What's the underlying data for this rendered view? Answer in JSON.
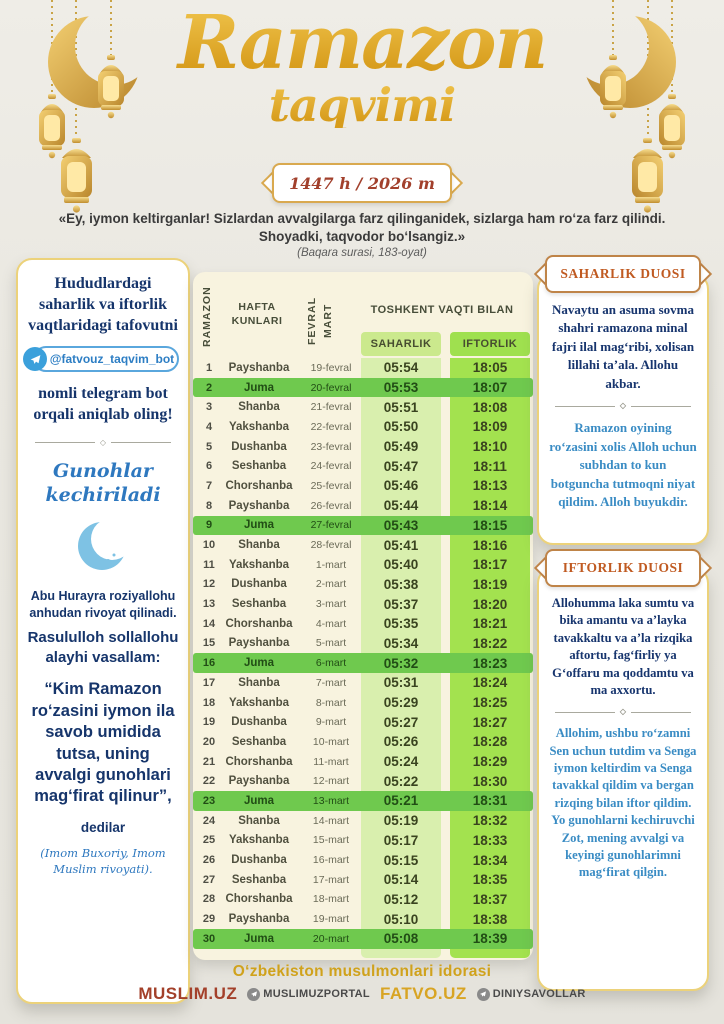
{
  "title": {
    "main": "Ramazon",
    "sub": "taqvimi"
  },
  "year_badge": "1447 h / 2026 m",
  "quote": {
    "text": "«Ey, iymon keltirganlar! Sizlardan avvalgilarga farz qilinganidek, sizlarga ham ro‘za farz qilindi. Shoyadki, taqvodor bo‘lsangiz.»",
    "source": "(Baqara surasi, 183-oyat)"
  },
  "left_panel": {
    "intro": "Hududlardagi saharlik va iftorlik vaqtlaridagi tafovutni",
    "bot_handle": "@fatvouz_taqvim_bot",
    "outro": "nomli telegram bot orqali aniqlab oling!",
    "heading": "Gunohlar kechiriladi",
    "narration1": "Abu Hurayra roziyallohu anhudan rivoyat qilinadi.",
    "narration2": "Rasululloh sollallohu alayhi vasallam:",
    "hadith": "“Kim Ramazon ro‘zasini iymon ila savob umidida tutsa, uning avvalgi gunohlari mag‘firat qilinur”,",
    "dedilar": "dedilar",
    "attribution": "(Imom Buxoriy, Imom Muslim rivoyati)."
  },
  "table": {
    "col_number": "RAMAZON",
    "col_day": "HAFTA KUNLARI",
    "col_date": "FEVRAL\nMART",
    "col_time_group": "TOSHKENT VAQTI BILAN",
    "col_saharlik": "SAHARLIK",
    "col_iftorlik": "IFTORLIK",
    "rows": [
      {
        "n": "1",
        "day": "Payshanba",
        "date": "19-fevral",
        "saharlik": "05:54",
        "iftorlik": "18:05",
        "juma": false
      },
      {
        "n": "2",
        "day": "Juma",
        "date": "20-fevral",
        "saharlik": "05:53",
        "iftorlik": "18:07",
        "juma": true
      },
      {
        "n": "3",
        "day": "Shanba",
        "date": "21-fevral",
        "saharlik": "05:51",
        "iftorlik": "18:08",
        "juma": false
      },
      {
        "n": "4",
        "day": "Yakshanba",
        "date": "22-fevral",
        "saharlik": "05:50",
        "iftorlik": "18:09",
        "juma": false
      },
      {
        "n": "5",
        "day": "Dushanba",
        "date": "23-fevral",
        "saharlik": "05:49",
        "iftorlik": "18:10",
        "juma": false
      },
      {
        "n": "6",
        "day": "Seshanba",
        "date": "24-fevral",
        "saharlik": "05:47",
        "iftorlik": "18:11",
        "juma": false
      },
      {
        "n": "7",
        "day": "Chorshanba",
        "date": "25-fevral",
        "saharlik": "05:46",
        "iftorlik": "18:13",
        "juma": false
      },
      {
        "n": "8",
        "day": "Payshanba",
        "date": "26-fevral",
        "saharlik": "05:44",
        "iftorlik": "18:14",
        "juma": false
      },
      {
        "n": "9",
        "day": "Juma",
        "date": "27-fevral",
        "saharlik": "05:43",
        "iftorlik": "18:15",
        "juma": true
      },
      {
        "n": "10",
        "day": "Shanba",
        "date": "28-fevral",
        "saharlik": "05:41",
        "iftorlik": "18:16",
        "juma": false
      },
      {
        "n": "11",
        "day": "Yakshanba",
        "date": "1-mart",
        "saharlik": "05:40",
        "iftorlik": "18:17",
        "juma": false
      },
      {
        "n": "12",
        "day": "Dushanba",
        "date": "2-mart",
        "saharlik": "05:38",
        "iftorlik": "18:19",
        "juma": false
      },
      {
        "n": "13",
        "day": "Seshanba",
        "date": "3-mart",
        "saharlik": "05:37",
        "iftorlik": "18:20",
        "juma": false
      },
      {
        "n": "14",
        "day": "Chorshanba",
        "date": "4-mart",
        "saharlik": "05:35",
        "iftorlik": "18:21",
        "juma": false
      },
      {
        "n": "15",
        "day": "Payshanba",
        "date": "5-mart",
        "saharlik": "05:34",
        "iftorlik": "18:22",
        "juma": false
      },
      {
        "n": "16",
        "day": "Juma",
        "date": "6-mart",
        "saharlik": "05:32",
        "iftorlik": "18:23",
        "juma": true
      },
      {
        "n": "17",
        "day": "Shanba",
        "date": "7-mart",
        "saharlik": "05:31",
        "iftorlik": "18:24",
        "juma": false
      },
      {
        "n": "18",
        "day": "Yakshanba",
        "date": "8-mart",
        "saharlik": "05:29",
        "iftorlik": "18:25",
        "juma": false
      },
      {
        "n": "19",
        "day": "Dushanba",
        "date": "9-mart",
        "saharlik": "05:27",
        "iftorlik": "18:27",
        "juma": false
      },
      {
        "n": "20",
        "day": "Seshanba",
        "date": "10-mart",
        "saharlik": "05:26",
        "iftorlik": "18:28",
        "juma": false
      },
      {
        "n": "21",
        "day": "Chorshanba",
        "date": "11-mart",
        "saharlik": "05:24",
        "iftorlik": "18:29",
        "juma": false
      },
      {
        "n": "22",
        "day": "Payshanba",
        "date": "12-mart",
        "saharlik": "05:22",
        "iftorlik": "18:30",
        "juma": false
      },
      {
        "n": "23",
        "day": "Juma",
        "date": "13-mart",
        "saharlik": "05:21",
        "iftorlik": "18:31",
        "juma": true
      },
      {
        "n": "24",
        "day": "Shanba",
        "date": "14-mart",
        "saharlik": "05:19",
        "iftorlik": "18:32",
        "juma": false
      },
      {
        "n": "25",
        "day": "Yakshanba",
        "date": "15-mart",
        "saharlik": "05:17",
        "iftorlik": "18:33",
        "juma": false
      },
      {
        "n": "26",
        "day": "Dushanba",
        "date": "16-mart",
        "saharlik": "05:15",
        "iftorlik": "18:34",
        "juma": false
      },
      {
        "n": "27",
        "day": "Seshanba",
        "date": "17-mart",
        "saharlik": "05:14",
        "iftorlik": "18:35",
        "juma": false
      },
      {
        "n": "28",
        "day": "Chorshanba",
        "date": "18-mart",
        "saharlik": "05:12",
        "iftorlik": "18:37",
        "juma": false
      },
      {
        "n": "29",
        "day": "Payshanba",
        "date": "19-mart",
        "saharlik": "05:10",
        "iftorlik": "18:38",
        "juma": false
      },
      {
        "n": "30",
        "day": "Juma",
        "date": "20-mart",
        "saharlik": "05:08",
        "iftorlik": "18:39",
        "juma": true
      }
    ]
  },
  "right_panel": {
    "saharlik": {
      "title": "SAHARLIK DUOSI",
      "dua": "Navaytu an asuma sovma shahri ramazona minal fajri ilal mag‘ribi, xolisan lillahi ta’ala. Allohu akbar.",
      "translation": "Ramazon oyining ro‘zasini xolis Alloh uchun subhdan to kun botguncha tutmoqni niyat qildim. Alloh buyukdir."
    },
    "iftorlik": {
      "title": "IFTORLIK DUOSI",
      "dua": "Allohumma laka sumtu va bika amantu va a’layka tavakkaltu va a’la rizqika aftortu, fag‘firliy ya G‘offaru ma qoddamtu va ma axxortu.",
      "translation": "Allohim, ushbu ro‘zamni Sen uchun tutdim va Senga iymon keltirdim va Senga tavakkal qildim va bergan rizqing bilan iftor qildim. Yo gunohlarni kechiruvchi Zot, mening avvalgi va keyingi gunohlarimni mag‘firat qilgin."
    }
  },
  "footer": {
    "org": "O‘zbekiston musulmonlari idorasi",
    "brand1": "MUSLIM.UZ",
    "handle1": "MUSLIMUZPORTAL",
    "brand2": "FATVO.UZ",
    "handle2": "DINIYSAVOLLAR"
  },
  "colors": {
    "gold": "#d9a525",
    "maroon": "#a2402c",
    "navy": "#16356b",
    "blue": "#3a8cc4",
    "duosi_title": "#c05a21",
    "juma_row_green": "#6fc94e",
    "saharlik_col_green": "#d9efae",
    "iftorlik_col_green": "#a3e24f"
  }
}
